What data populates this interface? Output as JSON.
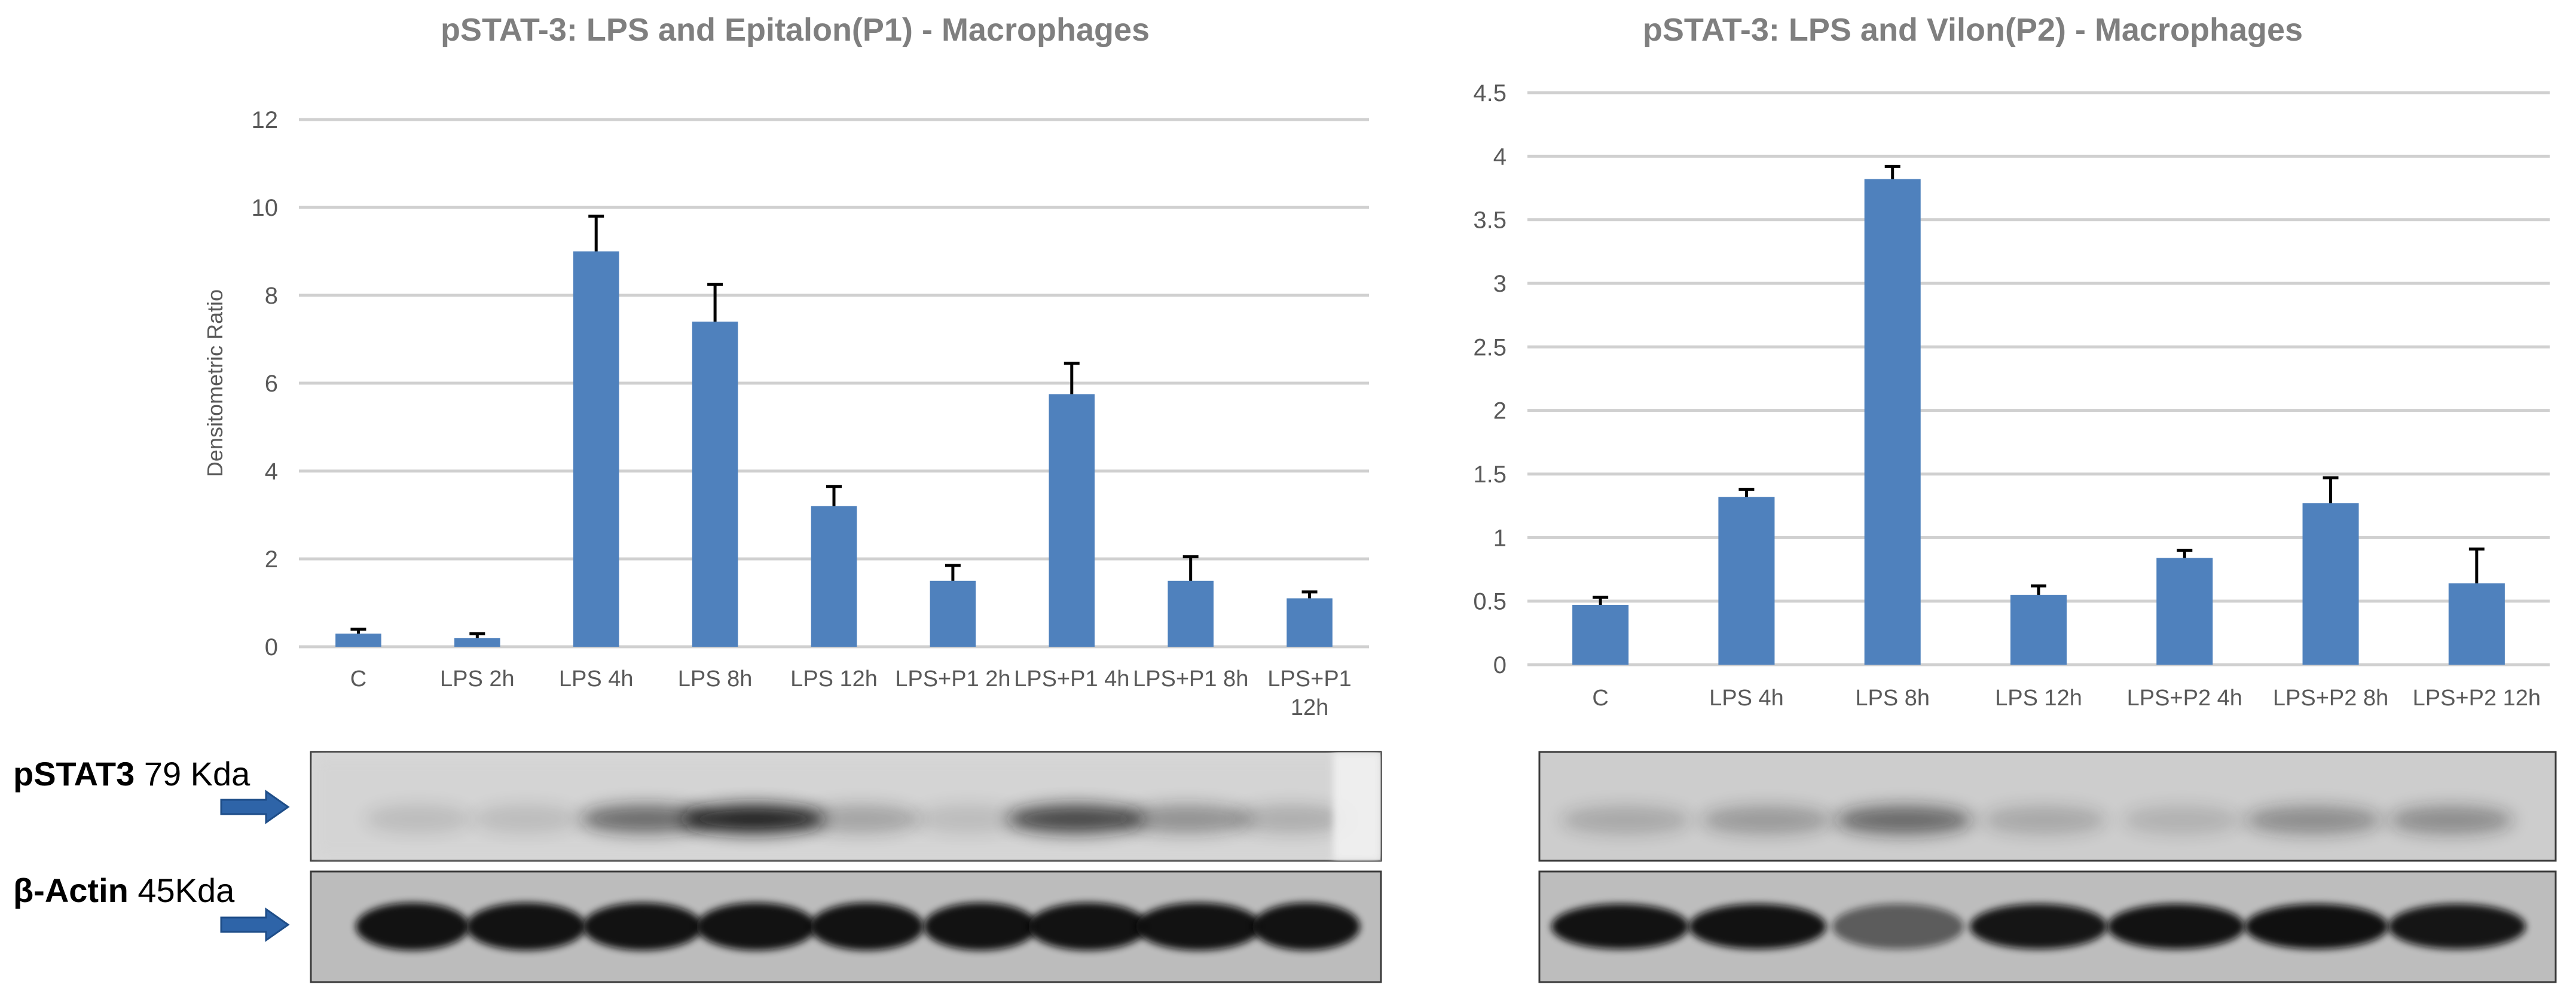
{
  "chart_data": [
    {
      "type": "bar",
      "title": "pSTAT-3: LPS and Epitalon(P1) - Macrophages",
      "ylabel": "Densitometric Ratio",
      "xlabel": "",
      "ylim": [
        0,
        12
      ],
      "yticks": [
        0,
        2,
        4,
        6,
        8,
        10,
        12
      ],
      "grid": true,
      "bar_color": "#4f81bd",
      "categories": [
        "C",
        "LPS 2h",
        "LPS 4h",
        "LPS 8h",
        "LPS 12h",
        "LPS+P1 2h",
        "LPS+P1 4h",
        "LPS+P1 8h",
        "LPS+P1\n12h"
      ],
      "values": [
        0.3,
        0.2,
        9.0,
        7.4,
        3.2,
        1.5,
        5.75,
        1.5,
        1.1
      ],
      "errors": [
        0.1,
        0.1,
        0.8,
        0.85,
        0.45,
        0.35,
        0.7,
        0.55,
        0.15
      ]
    },
    {
      "type": "bar",
      "title": "pSTAT-3: LPS and Vilon(P2) - Macrophages",
      "ylabel": "",
      "xlabel": "",
      "ylim": [
        0,
        4.5
      ],
      "yticks": [
        0,
        0.5,
        1,
        1.5,
        2,
        2.5,
        3,
        3.5,
        4,
        4.5
      ],
      "grid": true,
      "bar_color": "#4f81bd",
      "categories": [
        "C",
        "LPS 4h",
        "LPS 8h",
        "LPS 12h",
        "LPS+P2 4h",
        "LPS+P2 8h",
        "LPS+P2 12h"
      ],
      "values": [
        0.47,
        1.32,
        3.82,
        0.55,
        0.84,
        1.27,
        0.64
      ],
      "errors": [
        0.06,
        0.06,
        0.1,
        0.07,
        0.06,
        0.2,
        0.27
      ]
    }
  ],
  "blot_labels": {
    "pstat3_name": "pSTAT3",
    "pstat3_weight": "79 Kda",
    "actin_name": "β-Actin",
    "actin_weight": "45Kda"
  },
  "colors": {
    "arrow": "#2e64a8",
    "bar": "#4f81bd"
  }
}
